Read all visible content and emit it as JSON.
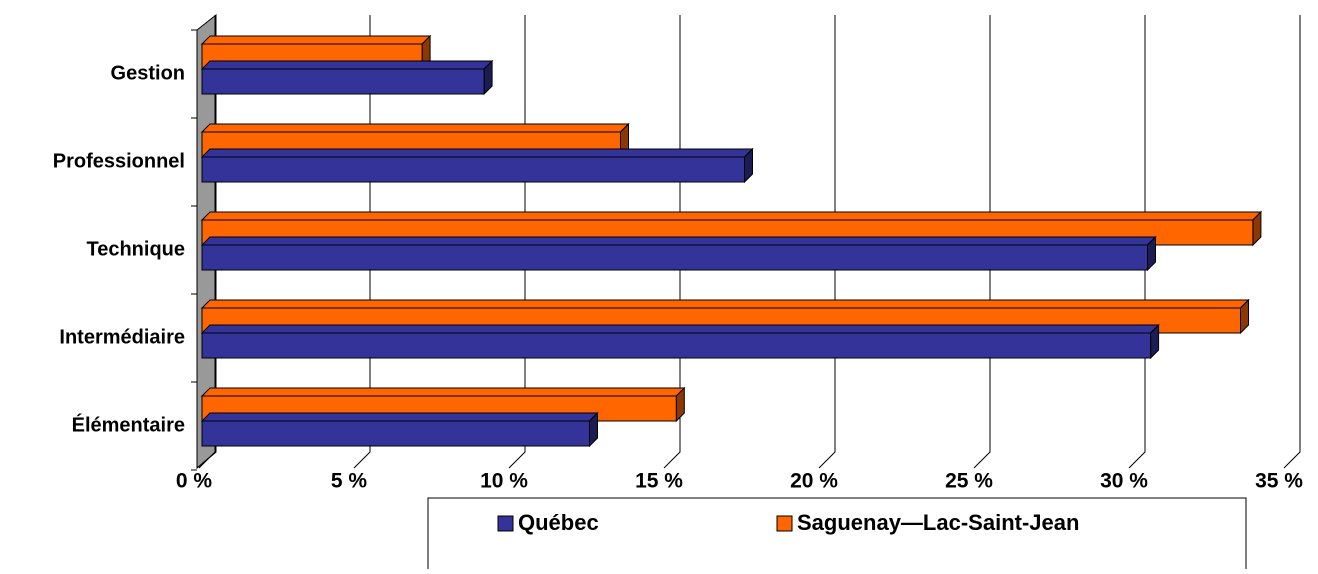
{
  "chart_data": {
    "type": "bar",
    "orientation": "horizontal",
    "categories": [
      "Gestion",
      "Professionnel",
      "Technique",
      "Intermédiaire",
      "Élémentaire"
    ],
    "series": [
      {
        "name": "Québec",
        "color": "#333399",
        "values": [
          9.1,
          17.5,
          30.5,
          30.6,
          12.5
        ]
      },
      {
        "name": "Saguenay—Lac-Saint-Jean",
        "color": "#ff6600",
        "values": [
          7.1,
          13.5,
          33.9,
          33.5,
          15.3
        ]
      }
    ],
    "xlim": [
      0,
      35
    ],
    "xticks": [
      {
        "value": 0,
        "label": "0 %"
      },
      {
        "value": 5,
        "label": "5 %"
      },
      {
        "value": 10,
        "label": "10 %"
      },
      {
        "value": 15,
        "label": "15 %"
      },
      {
        "value": 20,
        "label": "20 %"
      },
      {
        "value": 25,
        "label": "25 %"
      },
      {
        "value": 30,
        "label": "30 %"
      },
      {
        "value": 35,
        "label": "35 %"
      }
    ],
    "grid": true,
    "legend": "bottom"
  }
}
